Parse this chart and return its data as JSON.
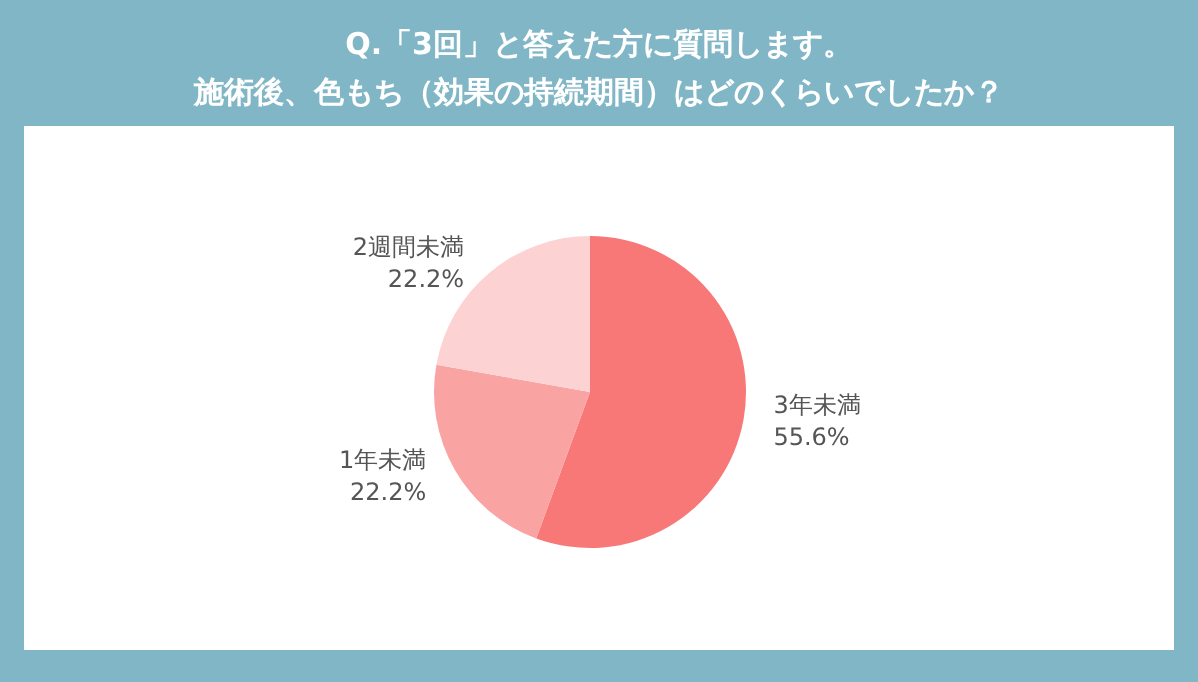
{
  "chart_data": {
    "type": "pie",
    "title": "Q.「3回」と答えた方に質問します。",
    "subtitle": "施術後、色もち（効果の持続期間）はどのくらいでしたか？",
    "categories": [
      "3年未満",
      "1年未満",
      "2週間未満"
    ],
    "values": [
      55.6,
      22.2,
      22.2
    ],
    "value_labels": [
      "55.6%",
      "22.2%",
      "22.2%"
    ],
    "colors": [
      "#f87878",
      "#f9a3a3",
      "#fdd2d2"
    ],
    "legend": false
  }
}
